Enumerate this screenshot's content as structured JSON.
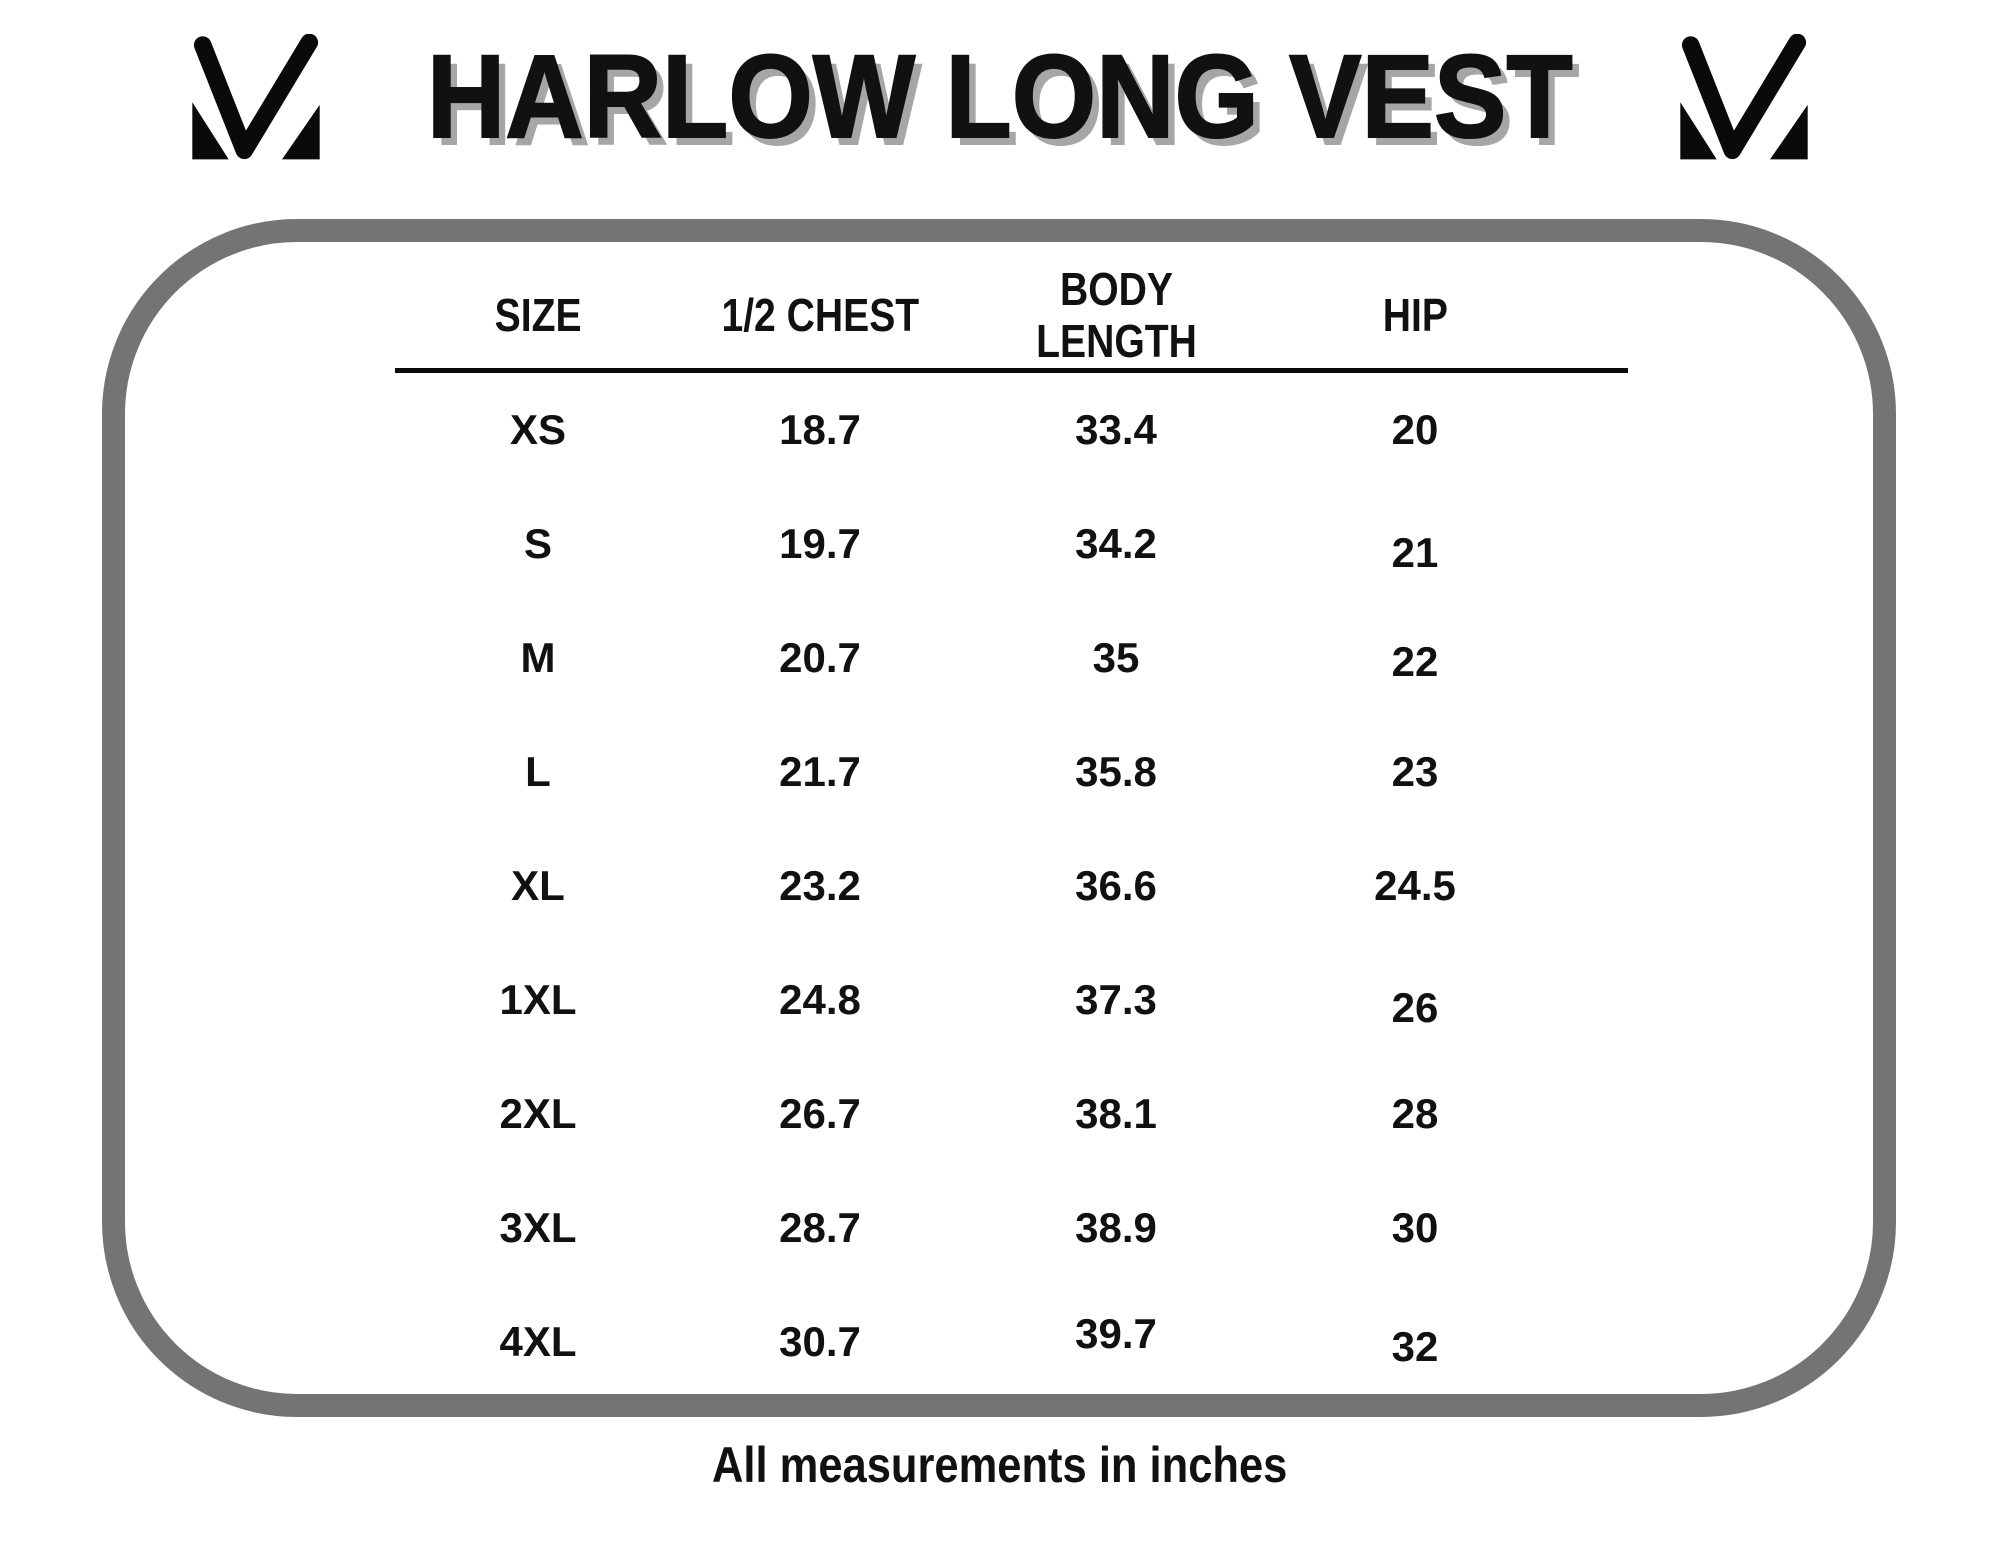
{
  "title": "HARLOW LONG VEST",
  "brand_logo": "m-checkmark-monogram",
  "footer_note": "All measurements in inches",
  "colors": {
    "frame_border": "#747474",
    "title_shadow": "#a6a6a6",
    "text": "#111111",
    "background": "#ffffff"
  },
  "chart_data": {
    "type": "table",
    "title": "HARLOW LONG VEST",
    "columns": [
      "SIZE",
      "1/2 CHEST",
      "BODY LENGTH",
      "HIP"
    ],
    "rows": [
      {
        "size": "XS",
        "half_chest": "18.7",
        "body_length": "33.4",
        "hip": "20"
      },
      {
        "size": "S",
        "half_chest": "19.7",
        "body_length": "34.2",
        "hip": "21"
      },
      {
        "size": "M",
        "half_chest": "20.7",
        "body_length": "35",
        "hip": "22"
      },
      {
        "size": "L",
        "half_chest": "21.7",
        "body_length": "35.8",
        "hip": "23"
      },
      {
        "size": "XL",
        "half_chest": "23.2",
        "body_length": "36.6",
        "hip": "24.5"
      },
      {
        "size": "1XL",
        "half_chest": "24.8",
        "body_length": "37.3",
        "hip": "26"
      },
      {
        "size": "2XL",
        "half_chest": "26.7",
        "body_length": "38.1",
        "hip": "28"
      },
      {
        "size": "3XL",
        "half_chest": "28.7",
        "body_length": "38.9",
        "hip": "30"
      },
      {
        "size": "4XL",
        "half_chest": "30.7",
        "body_length": "39.7",
        "hip": "32"
      }
    ],
    "units_note": "All measurements in inches",
    "layout_hints": {
      "grid": false,
      "header_divider": true,
      "rounded_frame": true
    }
  }
}
